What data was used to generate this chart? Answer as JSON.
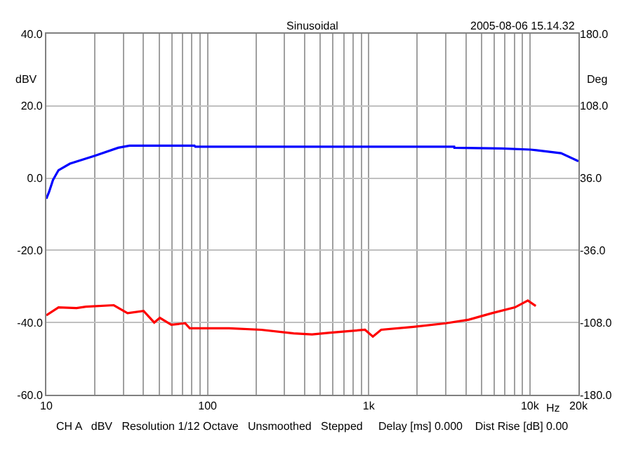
{
  "chart_data": {
    "type": "line",
    "title": "Sinusoidal",
    "subtitle": "2005-08-06 15.14.32",
    "xlabel": "Hz",
    "ylabel": "dBV",
    "y2label": "Deg",
    "annotations": [
      "CH A   dBV   Resolution 1/12 Octave   Unsmoothed   Stepped     Delay [ms] 0.000    Dist Rise [dB] 0.00"
    ],
    "log": "x",
    "grid": true,
    "marker": "none",
    "line_style": "solid",
    "xlim": [
      10,
      20000
    ],
    "xticks": [
      10,
      {
        "value": 20,
        "label": null
      },
      {
        "value": 30,
        "label": null
      },
      {
        "value": 40,
        "label": null
      },
      {
        "value": 50,
        "label": null
      },
      {
        "value": 60,
        "label": null
      },
      {
        "value": 70,
        "label": null
      },
      {
        "value": 80,
        "label": null
      },
      {
        "value": 90,
        "label": null
      },
      100,
      {
        "value": 200,
        "label": null
      },
      {
        "value": 300,
        "label": null
      },
      {
        "value": 400,
        "label": null
      },
      {
        "value": 500,
        "label": null
      },
      {
        "value": 600,
        "label": null
      },
      {
        "value": 700,
        "label": null
      },
      {
        "value": 800,
        "label": null
      },
      {
        "value": 900,
        "label": null
      },
      {
        "value": 1000,
        "label": "1k"
      },
      {
        "value": 2000,
        "label": null
      },
      {
        "value": 3000,
        "label": null
      },
      {
        "value": 4000,
        "label": null
      },
      {
        "value": 5000,
        "label": null
      },
      {
        "value": 6000,
        "label": null
      },
      {
        "value": 7000,
        "label": null
      },
      {
        "value": 8000,
        "label": null
      },
      {
        "value": 9000,
        "label": null
      },
      {
        "value": 10000,
        "label": "10k"
      },
      {
        "value": 20000,
        "label": "20k"
      }
    ],
    "ylim": [
      -60,
      40
    ],
    "yticks": [
      {
        "value": -60,
        "label": "-60.0"
      },
      {
        "value": -40,
        "label": "-40.0"
      },
      {
        "value": -20,
        "label": "-20.0"
      },
      {
        "value": 0,
        "label": "0.0"
      },
      {
        "value": 20,
        "label": "20.0"
      },
      {
        "value": 40,
        "label": "40.0"
      }
    ],
    "y2lim": [
      -180,
      180
    ],
    "y2ticks": [
      {
        "value": -180,
        "label": "-180.0"
      },
      {
        "value": -108,
        "label": "-108.0"
      },
      {
        "value": -36,
        "label": "-36.0"
      },
      {
        "value": 36,
        "label": "36.0"
      },
      {
        "value": 108,
        "label": "108.0"
      },
      {
        "value": 180,
        "label": "180.0"
      }
    ],
    "series": [
      {
        "color": "#0000ff",
        "x": [
          10,
          10.4,
          11,
          11.9,
          14,
          20,
          27.9,
          32.8,
          83,
          84,
          3390,
          3400,
          6670,
          10100,
          15600,
          20000
        ],
        "values": [
          -5.7,
          -3.8,
          -0.5,
          2.2,
          4.0,
          6.2,
          8.4,
          9.0,
          9.0,
          8.7,
          8.7,
          8.4,
          8.2,
          7.9,
          6.9,
          4.7
        ]
      },
      {
        "color": "#ff0000",
        "x": [
          10,
          11.9,
          15.4,
          17.6,
          26.2,
          31.9,
          40.1,
          46.7,
          50.6,
          59.6,
          72.6,
          77.6,
          136,
          215,
          342,
          445,
          578,
          948,
          1061,
          1194,
          1892,
          3007,
          4178,
          5808,
          8074,
          9706,
          10870
        ],
        "values": [
          -38.0,
          -35.8,
          -36.0,
          -35.6,
          -35.2,
          -37.4,
          -36.8,
          -40.0,
          -38.7,
          -40.6,
          -40.2,
          -41.6,
          -41.6,
          -42.0,
          -43.0,
          -43.3,
          -42.8,
          -42.0,
          -43.9,
          -42.0,
          -41.2,
          -40.2,
          -39.2,
          -37.4,
          -35.8,
          -33.9,
          -35.4
        ]
      }
    ]
  }
}
